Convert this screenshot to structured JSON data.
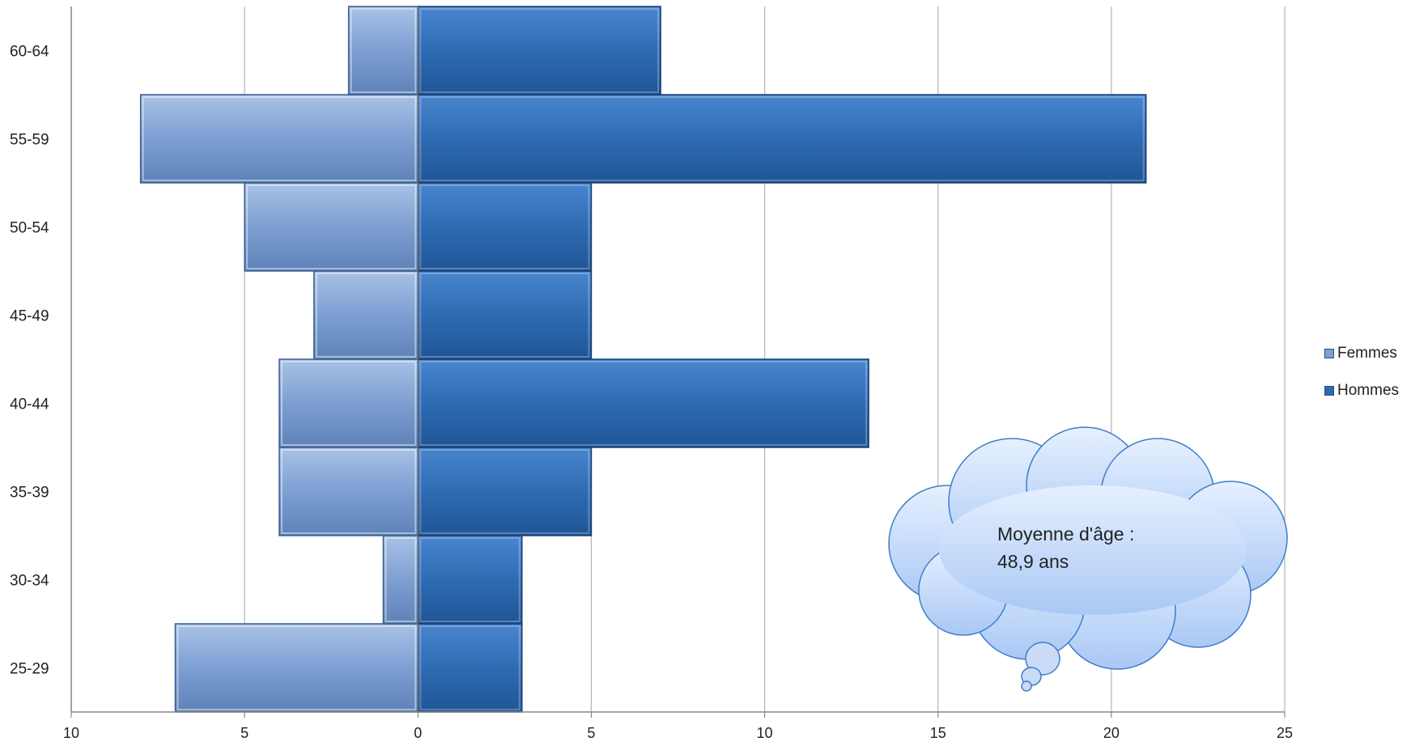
{
  "chart_data": {
    "type": "bar",
    "orientation": "horizontal",
    "stacked_diverging": true,
    "categories": [
      "25-29",
      "30-34",
      "35-39",
      "40-44",
      "45-49",
      "50-54",
      "55-59",
      "60-64"
    ],
    "series": [
      {
        "name": "Femmes",
        "values": [
          7,
          1,
          4,
          4,
          3,
          5,
          8,
          2
        ],
        "color": "#7d9fd2",
        "direction": "left"
      },
      {
        "name": "Hommes",
        "values": [
          3,
          3,
          5,
          13,
          5,
          5,
          21,
          7
        ],
        "color": "#2f6bb3",
        "direction": "right"
      }
    ],
    "x_ticks": [
      "10",
      "5",
      "0",
      "5",
      "10",
      "15",
      "20",
      "25"
    ],
    "xlim": [
      -10,
      25
    ],
    "grid": "vertical",
    "legend_position": "right",
    "annotation": {
      "line1": "Moyenne d'âge :",
      "line2": "48,9 ans"
    }
  }
}
